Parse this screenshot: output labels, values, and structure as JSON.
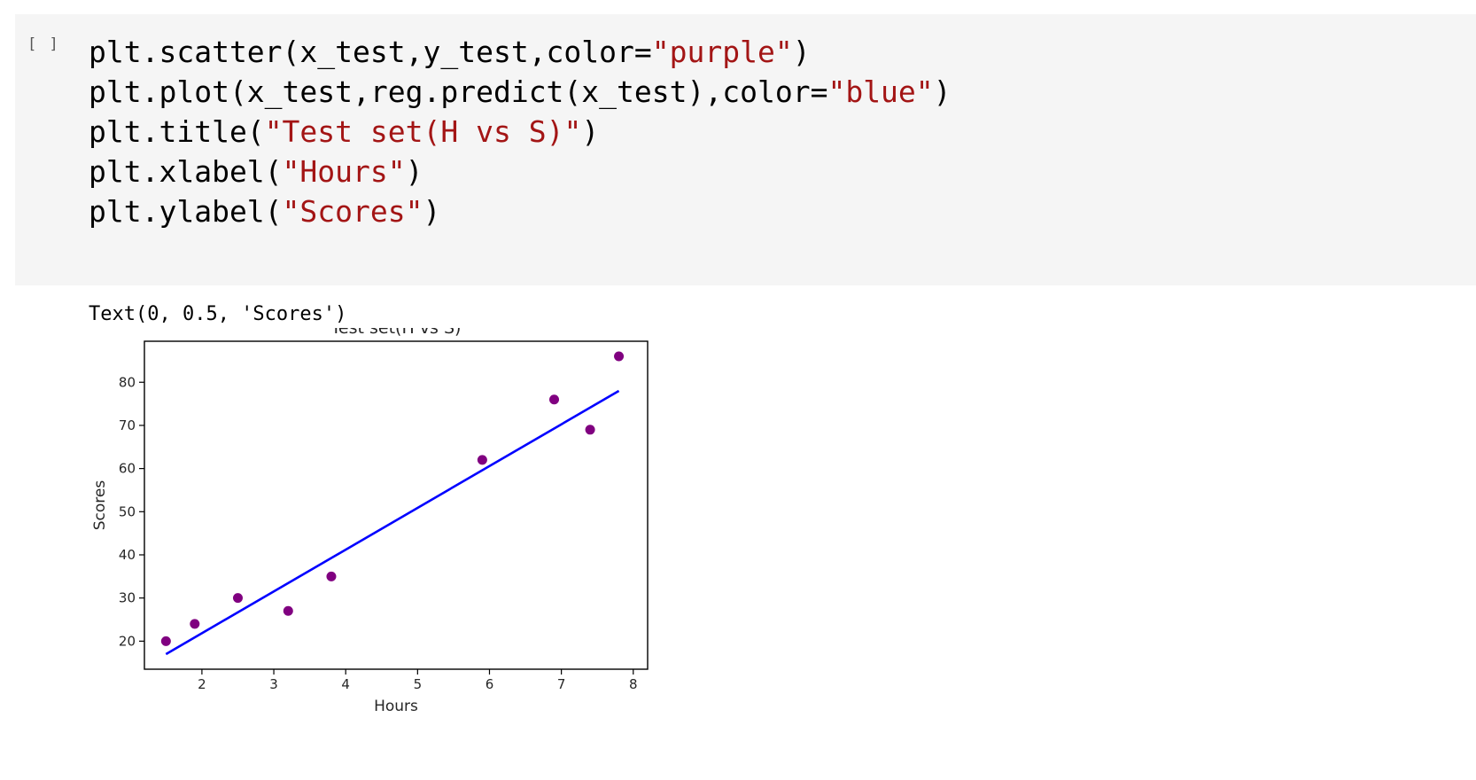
{
  "cell": {
    "run_indicator": "[ ]",
    "code_lines": [
      [
        {
          "t": "plt.scatter(x_test,y_test,color=",
          "s": false
        },
        {
          "t": "\"purple\"",
          "s": true
        },
        {
          "t": ")",
          "s": false
        }
      ],
      [
        {
          "t": "plt.plot(x_test,reg.predict(x_test),color=",
          "s": false
        },
        {
          "t": "\"blue\"",
          "s": true
        },
        {
          "t": ")",
          "s": false
        }
      ],
      [
        {
          "t": "plt.title(",
          "s": false
        },
        {
          "t": "\"Test set(H vs S)\"",
          "s": true
        },
        {
          "t": ")",
          "s": false
        }
      ],
      [
        {
          "t": "plt.xlabel(",
          "s": false
        },
        {
          "t": "\"Hours\"",
          "s": true
        },
        {
          "t": ")",
          "s": false
        }
      ],
      [
        {
          "t": "plt.ylabel(",
          "s": false
        },
        {
          "t": "\"Scores\"",
          "s": true
        },
        {
          "t": ")",
          "s": false
        }
      ]
    ],
    "output_text": "Text(0, 0.5, 'Scores')"
  },
  "colors": {
    "string_literal": "#a31515",
    "cell_background": "#f5f5f5"
  },
  "chart_data": {
    "type": "scatter",
    "title": "Test set(H vs S)",
    "xlabel": "Hours",
    "ylabel": "Scores",
    "xlim": [
      1.2,
      8.2
    ],
    "ylim": [
      13.5,
      89.5
    ],
    "xticks": [
      2,
      3,
      4,
      5,
      6,
      7,
      8
    ],
    "yticks": [
      20,
      30,
      40,
      50,
      60,
      70,
      80
    ],
    "grid": false,
    "series": [
      {
        "kind": "scatter",
        "color": "#800080",
        "x": [
          1.5,
          1.9,
          2.5,
          3.2,
          3.8,
          5.9,
          6.9,
          7.4,
          7.8
        ],
        "y": [
          20,
          24,
          30,
          27,
          35,
          62,
          76,
          69,
          86
        ]
      },
      {
        "kind": "line",
        "color": "#0000ff",
        "x": [
          1.5,
          7.8
        ],
        "y": [
          17,
          78
        ]
      }
    ]
  }
}
